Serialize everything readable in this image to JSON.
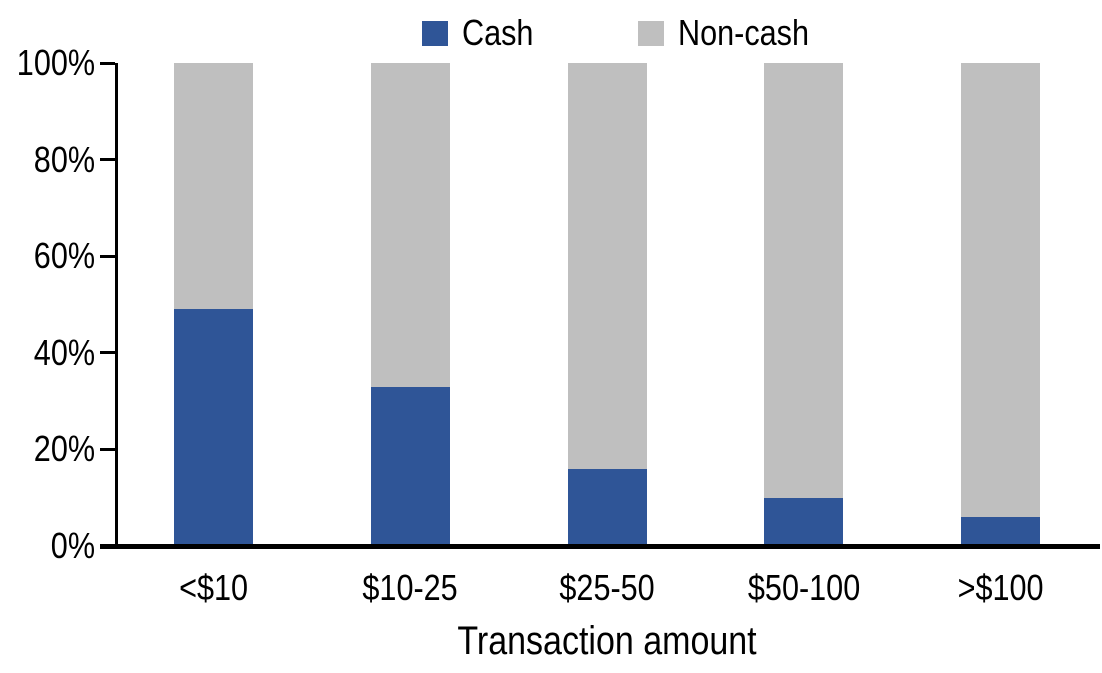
{
  "chart_data": {
    "type": "bar",
    "stacked": true,
    "percent": true,
    "categories": [
      "<$10",
      "$10-25",
      "$25-50",
      "$50-100",
      ">$100"
    ],
    "series": [
      {
        "name": "Cash",
        "color": "#2F5597",
        "values": [
          49,
          33,
          16,
          10,
          6
        ]
      },
      {
        "name": "Non-cash",
        "color": "#BFBFBF",
        "values": [
          51,
          67,
          84,
          90,
          94
        ]
      }
    ],
    "title": "",
    "xlabel": "Transaction amount",
    "ylabel": "",
    "ylim": [
      0,
      100
    ],
    "yticks": [
      0,
      20,
      40,
      60,
      80,
      100
    ],
    "ytick_labels": [
      "0%",
      "20%",
      "40%",
      "60%",
      "80%",
      "100%"
    ],
    "grid": false,
    "legend_position": "top",
    "axis_color": "#000000",
    "text_color": "#000000",
    "background_color": "#FFFFFF"
  }
}
